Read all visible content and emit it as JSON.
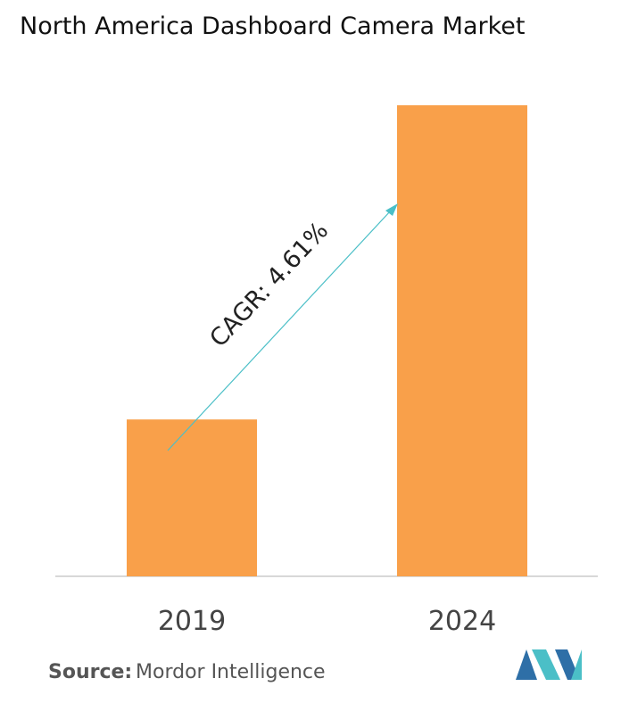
{
  "chart_data": {
    "type": "bar",
    "title": "North America Dashboard Camera Market",
    "categories": [
      "2019",
      "2024"
    ],
    "values": [
      33.3,
      100
    ],
    "color": "#f9a04a",
    "ylim": [
      0,
      100
    ],
    "annotation": "CAGR: 4.61%",
    "source_label": "Source:",
    "source": "Mordor Intelligence"
  }
}
